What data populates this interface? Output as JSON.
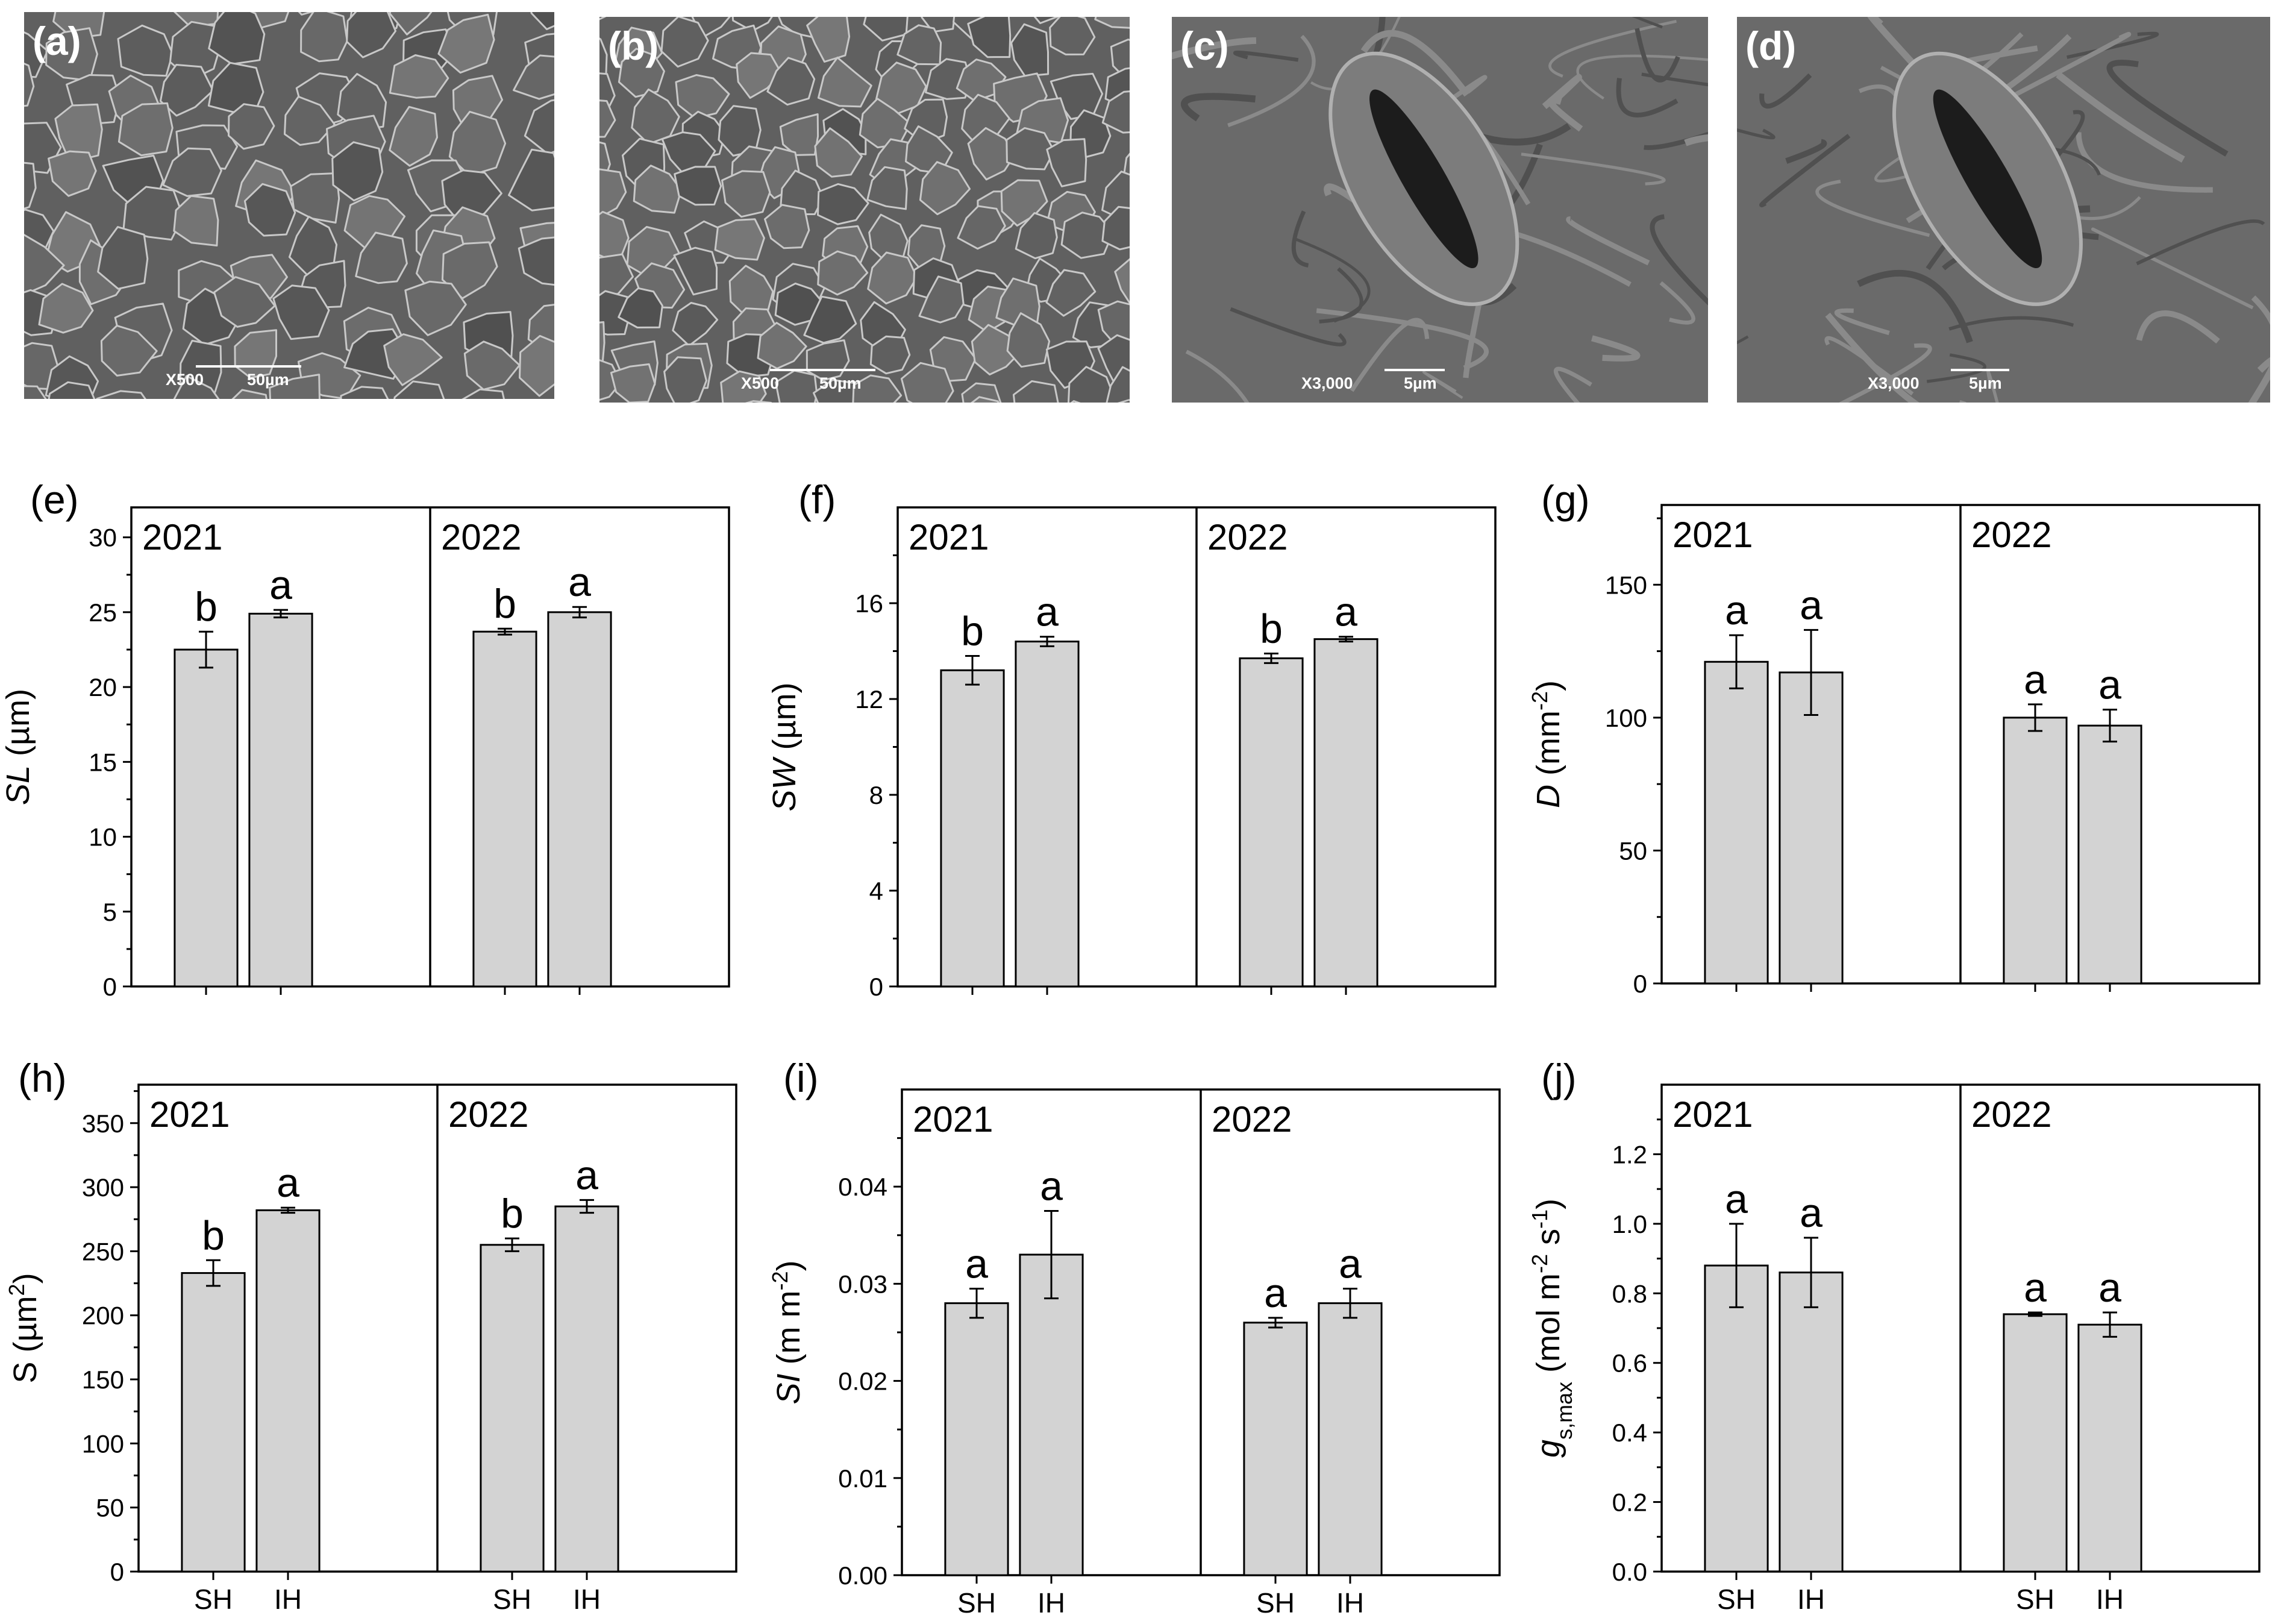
{
  "sem_panels": [
    {
      "label": "(a)",
      "magnification": "X500",
      "scale": "50µm"
    },
    {
      "label": "(b)",
      "magnification": "X500",
      "scale": "50µm"
    },
    {
      "label": "(c)",
      "magnification": "X3,000",
      "scale": "5µm"
    },
    {
      "label": "(d)",
      "magnification": "X3,000",
      "scale": "5µm"
    }
  ],
  "colors": {
    "bar_fill": "#d3d3d3",
    "bar_stroke": "#000000",
    "sem_gray": "#5a5a5a"
  },
  "chart_data": [
    {
      "panel": "(e)",
      "type": "bar",
      "ylabel": [
        [
          "SL",
          true
        ],
        [
          " (µm)",
          false
        ]
      ],
      "categories": [
        "SH",
        "IH",
        "SH",
        "IH"
      ],
      "show_x_tick_labels": false,
      "groups": [
        "2021",
        "2022"
      ],
      "ylim": [
        0,
        32
      ],
      "yticks": [
        0,
        5,
        10,
        15,
        20,
        25,
        30
      ],
      "ytick_labels": [
        "0",
        "5",
        "10",
        "15",
        "20",
        "25",
        "30"
      ],
      "values": [
        22.5,
        24.9,
        23.7,
        25.0
      ],
      "errors": [
        1.2,
        0.25,
        0.2,
        0.35
      ],
      "letters": [
        "b",
        "a",
        "b",
        "a"
      ]
    },
    {
      "panel": "(f)",
      "type": "bar",
      "ylabel": [
        [
          "SW",
          true
        ],
        [
          " (µm)",
          false
        ]
      ],
      "categories": [
        "SH",
        "IH",
        "SH",
        "IH"
      ],
      "show_x_tick_labels": false,
      "groups": [
        "2021",
        "2022"
      ],
      "ylim": [
        0,
        20
      ],
      "yticks": [
        0,
        4,
        8,
        12,
        16
      ],
      "ytick_labels": [
        "0",
        "4",
        "8",
        "12",
        "16"
      ],
      "values": [
        13.2,
        14.4,
        13.7,
        14.5
      ],
      "errors": [
        0.6,
        0.2,
        0.2,
        0.1
      ],
      "letters": [
        "b",
        "a",
        "b",
        "a"
      ]
    },
    {
      "panel": "(g)",
      "type": "bar",
      "ylabel": [
        [
          "D",
          true
        ],
        [
          " (mm",
          false
        ],
        [
          "-2",
          "sup"
        ],
        [
          ")",
          false
        ]
      ],
      "categories": [
        "SH",
        "IH",
        "SH",
        "IH"
      ],
      "show_x_tick_labels": false,
      "groups": [
        "2021",
        "2022"
      ],
      "ylim": [
        0,
        180
      ],
      "yticks": [
        0,
        50,
        100,
        150
      ],
      "ytick_labels": [
        "0",
        "50",
        "100",
        "150"
      ],
      "values": [
        121,
        117,
        100,
        97
      ],
      "errors": [
        10,
        16,
        5,
        6
      ],
      "letters": [
        "a",
        "a",
        "a",
        "a"
      ]
    },
    {
      "panel": "(h)",
      "type": "bar",
      "ylabel": [
        [
          "S (µm",
          false
        ],
        [
          "2",
          "sup"
        ],
        [
          ")",
          false
        ]
      ],
      "categories": [
        "SH",
        "IH",
        "SH",
        "IH"
      ],
      "show_x_tick_labels": true,
      "groups": [
        "2021",
        "2022"
      ],
      "ylim": [
        0,
        380
      ],
      "yticks": [
        0,
        50,
        100,
        150,
        200,
        250,
        300,
        350
      ],
      "ytick_labels": [
        "0",
        "50",
        "100",
        "150",
        "200",
        "250",
        "300",
        "350"
      ],
      "values": [
        233,
        282,
        255,
        285
      ],
      "errors": [
        10,
        2,
        5,
        5
      ],
      "letters": [
        "b",
        "a",
        "b",
        "a"
      ]
    },
    {
      "panel": "(i)",
      "type": "bar",
      "ylabel": [
        [
          "SI",
          true
        ],
        [
          " (m m",
          false
        ],
        [
          "-2",
          "sup"
        ],
        [
          ")",
          false
        ]
      ],
      "categories": [
        "SH",
        "IH",
        "SH",
        "IH"
      ],
      "show_x_tick_labels": true,
      "groups": [
        "2021",
        "2022"
      ],
      "ylim": [
        0,
        0.05
      ],
      "yticks": [
        0,
        0.01,
        0.02,
        0.03,
        0.04
      ],
      "ytick_labels": [
        "0.00",
        "0.01",
        "0.02",
        "0.03",
        "0.04"
      ],
      "values": [
        0.028,
        0.033,
        0.026,
        0.028
      ],
      "errors": [
        0.0015,
        0.0045,
        0.0005,
        0.0015
      ],
      "letters": [
        "a",
        "a",
        "a",
        "a"
      ]
    },
    {
      "panel": "(j)",
      "type": "bar",
      "ylabel": [
        [
          "g",
          true
        ],
        [
          "s,max",
          "sub"
        ],
        [
          " (mol m",
          false
        ],
        [
          "-2",
          "sup"
        ],
        [
          " s",
          false
        ],
        [
          "-1",
          "sup"
        ],
        [
          ")",
          false
        ]
      ],
      "categories": [
        "SH",
        "IH",
        "SH",
        "IH"
      ],
      "show_x_tick_labels": true,
      "groups": [
        "2021",
        "2022"
      ],
      "ylim": [
        0,
        1.4
      ],
      "yticks": [
        0,
        0.2,
        0.4,
        0.6,
        0.8,
        1.0,
        1.2
      ],
      "ytick_labels": [
        "0.0",
        "0.2",
        "0.4",
        "0.6",
        "0.8",
        "1.0",
        "1.2"
      ],
      "values": [
        0.88,
        0.86,
        0.74,
        0.71
      ],
      "errors": [
        0.12,
        0.1,
        0.005,
        0.035
      ],
      "letters": [
        "a",
        "a",
        "a",
        "a"
      ]
    }
  ]
}
